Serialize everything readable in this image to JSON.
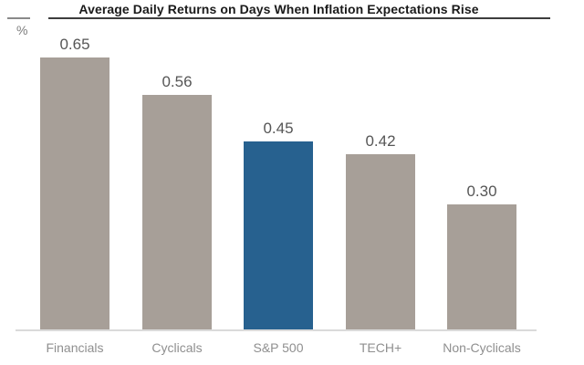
{
  "chart_data": {
    "type": "bar",
    "title": "Average Daily Returns on Days When Inflation Expectations Rise",
    "unit_label": "%",
    "categories": [
      "Financials",
      "Cyclicals",
      "S&P 500",
      "TECH+",
      "Non-Cyclicals"
    ],
    "values": [
      0.65,
      0.56,
      0.45,
      0.42,
      0.3
    ],
    "value_labels": [
      "0.65",
      "0.56",
      "0.45",
      "0.42",
      "0.30"
    ],
    "highlight_index": 2,
    "xlabel": "",
    "ylabel": "%",
    "ylim": [
      0,
      0.7
    ],
    "grid": false,
    "legend": false
  },
  "colors": {
    "bar_default": "#a79f98",
    "bar_highlight": "#27618f",
    "title_text": "#1a1a1a",
    "title_rule": "#3d3d3d",
    "axis_rule_left": "#8a8a8a",
    "value_label": "#565656",
    "category_label": "#8f8f8f",
    "percent_label": "#7d7d7d",
    "baseline": "#dadada",
    "background": "#ffffff"
  }
}
